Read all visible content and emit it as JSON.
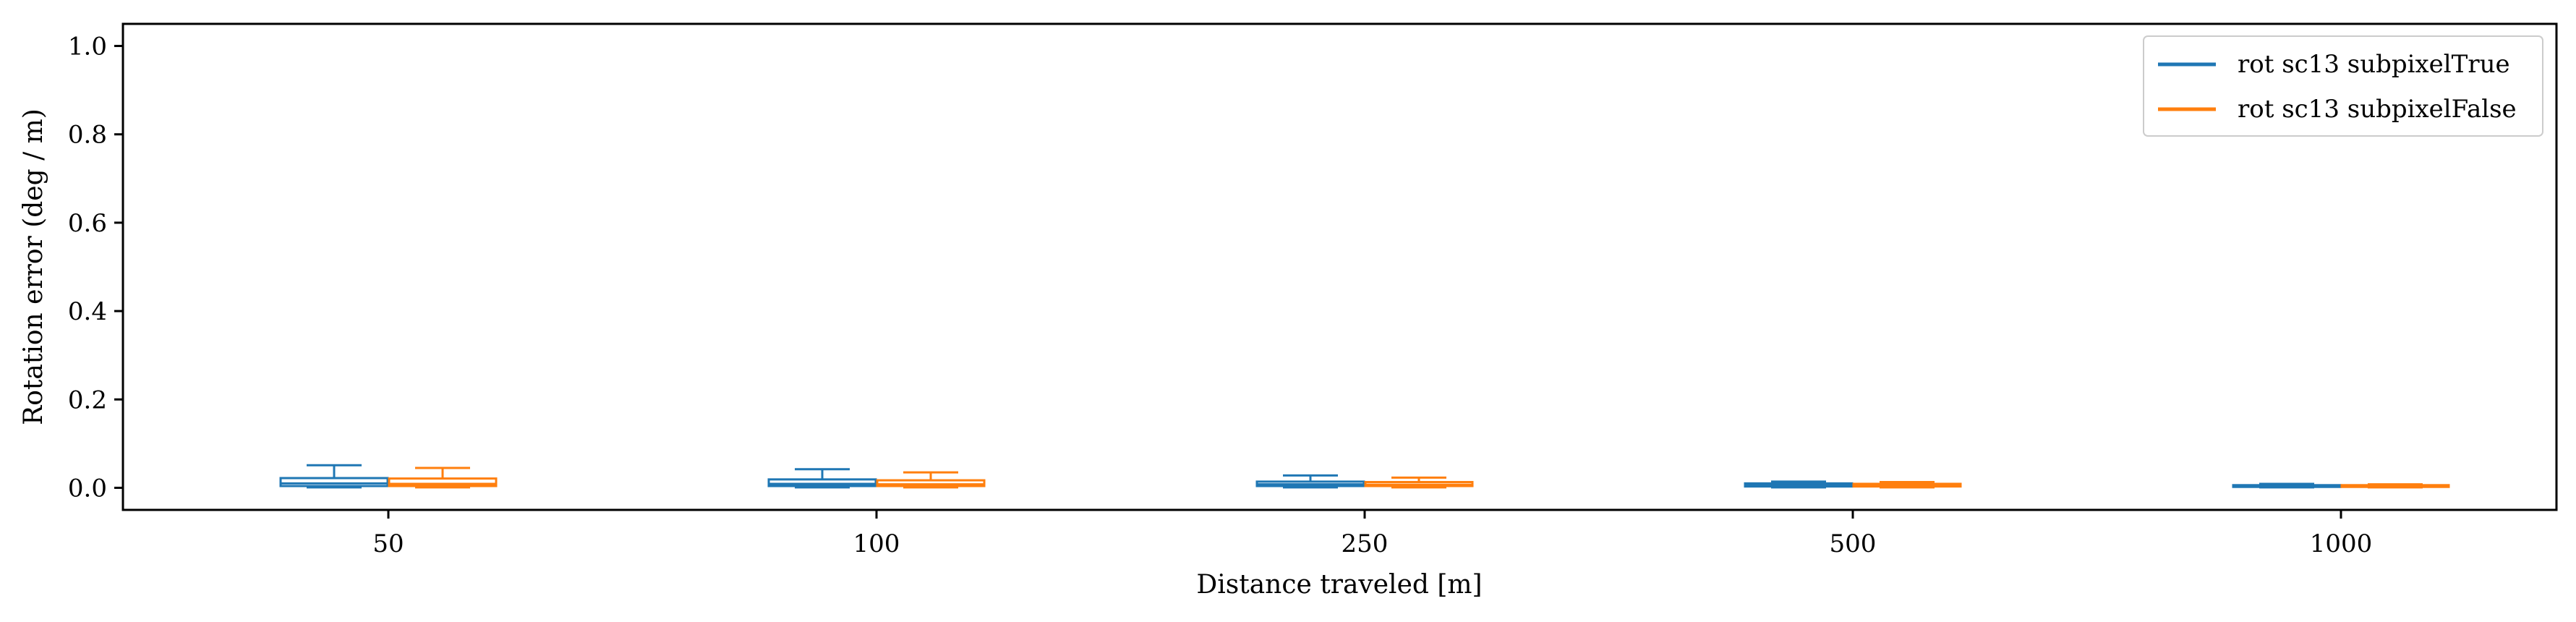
{
  "chart_data": {
    "type": "box",
    "xlabel": "Distance traveled [m]",
    "ylabel": "Rotation error (deg / m)",
    "ylim": [
      -0.05,
      1.05
    ],
    "yticks": [
      0.0,
      0.2,
      0.4,
      0.6,
      0.8,
      1.0
    ],
    "ytick_labels": [
      "0.0",
      "0.2",
      "0.4",
      "0.6",
      "0.8",
      "1.0"
    ],
    "categories": [
      "50",
      "100",
      "250",
      "500",
      "1000"
    ],
    "grid": false,
    "legend_position": "top-right",
    "series": [
      {
        "name": "rot sc13 subpixelTrue",
        "color": "#1f77b4",
        "boxes": [
          {
            "whisker_low": 0.001,
            "q1": 0.004,
            "median": 0.01,
            "q3": 0.022,
            "whisker_high": 0.051
          },
          {
            "whisker_low": 0.001,
            "q1": 0.004,
            "median": 0.009,
            "q3": 0.019,
            "whisker_high": 0.042
          },
          {
            "whisker_low": 0.001,
            "q1": 0.004,
            "median": 0.008,
            "q3": 0.014,
            "whisker_high": 0.028
          },
          {
            "whisker_low": 0.001,
            "q1": 0.003,
            "median": 0.006,
            "q3": 0.01,
            "whisker_high": 0.014
          },
          {
            "whisker_low": 0.001,
            "q1": 0.002,
            "median": 0.004,
            "q3": 0.006,
            "whisker_high": 0.009
          }
        ]
      },
      {
        "name": "rot sc13 subpixelFalse",
        "color": "#ff7f0e",
        "boxes": [
          {
            "whisker_low": 0.001,
            "q1": 0.004,
            "median": 0.009,
            "q3": 0.021,
            "whisker_high": 0.045
          },
          {
            "whisker_low": 0.001,
            "q1": 0.004,
            "median": 0.008,
            "q3": 0.017,
            "whisker_high": 0.035
          },
          {
            "whisker_low": 0.001,
            "q1": 0.004,
            "median": 0.007,
            "q3": 0.013,
            "whisker_high": 0.023
          },
          {
            "whisker_low": 0.001,
            "q1": 0.003,
            "median": 0.005,
            "q3": 0.009,
            "whisker_high": 0.013
          },
          {
            "whisker_low": 0.001,
            "q1": 0.002,
            "median": 0.004,
            "q3": 0.006,
            "whisker_high": 0.008
          }
        ]
      }
    ]
  }
}
